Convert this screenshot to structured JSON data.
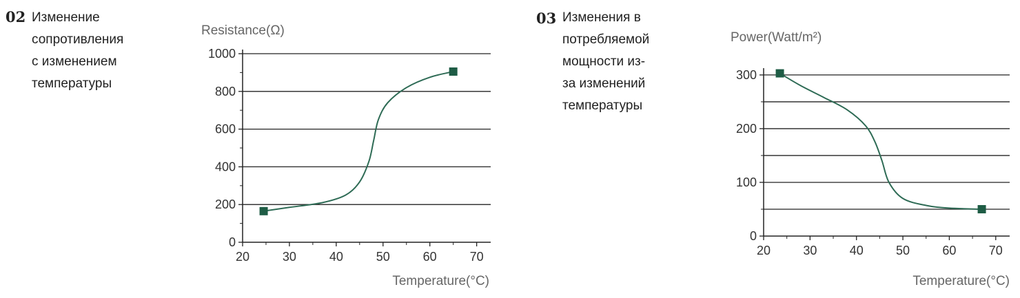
{
  "block_02": {
    "number": "02",
    "lines": [
      "Изменение",
      "сопротивления",
      "с изменением",
      "температуры"
    ]
  },
  "block_03": {
    "number": "03",
    "lines": [
      "Изменения в",
      "потребляемой",
      "мощности из-",
      "за изменений",
      "температуры"
    ]
  },
  "colors": {
    "curve": "#2e6b55",
    "marker": "#1e5c45",
    "grid": "#222222",
    "axis": "#222222"
  },
  "chart_data": [
    {
      "type": "line",
      "ylabel": "Resistance(Ω)",
      "xlabel": "Temperature(°C)",
      "xlim": [
        20,
        73
      ],
      "ylim": [
        0,
        1000
      ],
      "xticks": [
        20,
        30,
        40,
        50,
        60,
        70
      ],
      "yticks": [
        0,
        200,
        400,
        600,
        800,
        1000
      ],
      "grid": "horizontal",
      "series": [
        {
          "values": [
            [
              24.5,
              165
            ],
            [
              30,
              185
            ],
            [
              37,
              210
            ],
            [
              42,
              250
            ],
            [
              45,
              320
            ],
            [
              47,
              430
            ],
            [
              48,
              540
            ],
            [
              49,
              650
            ],
            [
              51,
              740
            ],
            [
              55,
              820
            ],
            [
              60,
              875
            ],
            [
              65,
              905
            ]
          ],
          "markers_at_ends": true
        }
      ]
    },
    {
      "type": "line",
      "ylabel": "Power(Watt/m²)",
      "xlabel": "Temperature(°C)",
      "xlim": [
        20,
        73
      ],
      "ylim": [
        0,
        305
      ],
      "xticks": [
        20,
        30,
        40,
        50,
        60,
        70
      ],
      "yticks": [
        0,
        100,
        200,
        300
      ],
      "extra_gridlines": [
        50,
        150,
        250
      ],
      "grid": "horizontal",
      "series": [
        {
          "values": [
            [
              23.5,
              303
            ],
            [
              28,
              280
            ],
            [
              33,
              258
            ],
            [
              38,
              235
            ],
            [
              42,
              205
            ],
            [
              44,
              175
            ],
            [
              45.5,
              140
            ],
            [
              47,
              100
            ],
            [
              50,
              70
            ],
            [
              55,
              57
            ],
            [
              60,
              52
            ],
            [
              67,
              50
            ]
          ],
          "markers_at_ends": true
        }
      ]
    }
  ]
}
